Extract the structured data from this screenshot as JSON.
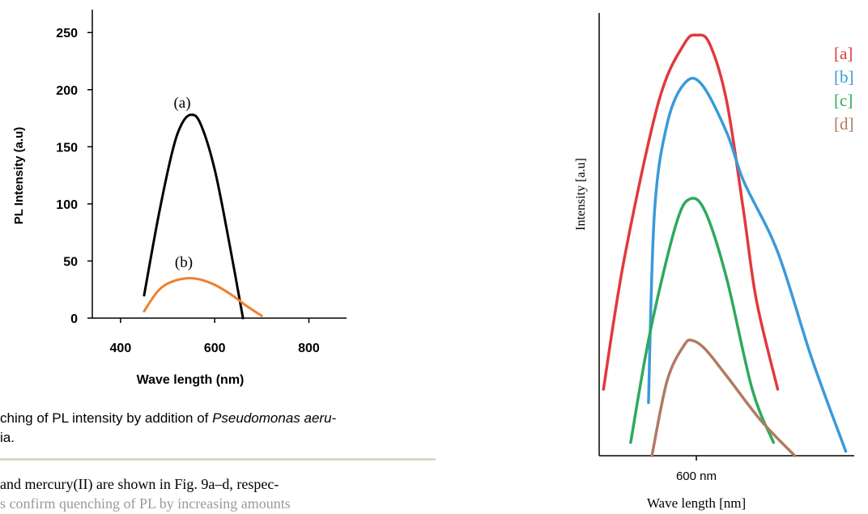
{
  "charts": {
    "left": {
      "ylabel": "PL Intensity (a.u)",
      "xlabel": "Wave length (nm)",
      "xticks": [
        "400",
        "600",
        "800"
      ],
      "yticks": [
        "0",
        "50",
        "100",
        "150",
        "200",
        "250"
      ],
      "curve_labels": [
        "(a)",
        "(b)"
      ]
    },
    "right": {
      "ylabel": "Intensity [a.u]",
      "xlabel": "Wave length [nm]",
      "xtick": "600 nm",
      "legend": [
        "[a]",
        "[b]",
        "[c]",
        "[d]"
      ]
    }
  },
  "chart_data": [
    {
      "type": "line",
      "xlabel": "Wave length (nm)",
      "ylabel": "PL Intensity (a.u)",
      "xlim": [
        340,
        880
      ],
      "ylim": [
        0,
        270
      ],
      "grid": false,
      "series": [
        {
          "name": "(a)",
          "color": "#000000",
          "x": [
            450,
            480,
            510,
            530,
            550,
            570,
            600,
            630,
            660
          ],
          "y": [
            20,
            88,
            146,
            170,
            178,
            170,
            130,
            68,
            0
          ]
        },
        {
          "name": "(b)",
          "color": "#f07f2e",
          "x": [
            450,
            480,
            510,
            550,
            590,
            630,
            670,
            700
          ],
          "y": [
            6,
            24,
            32,
            35,
            31,
            22,
            10,
            2
          ]
        }
      ]
    },
    {
      "type": "line",
      "xlabel": "Wave length [nm]",
      "ylabel": "Intensity [a.u]",
      "x_tick": 600,
      "xlim": [
        450,
        750
      ],
      "ylim": [
        0,
        100
      ],
      "legend_position": "top-right",
      "grid": false,
      "series": [
        {
          "name": "[a]",
          "color": "#e03a3e",
          "x": [
            455,
            480,
            520,
            550,
            565,
            580,
            600,
            620,
            635,
            660
          ],
          "y": [
            15,
            45,
            80,
            93,
            95,
            93,
            80,
            55,
            35,
            15
          ]
        },
        {
          "name": "[b]",
          "color": "#3a9ad9",
          "x": [
            508,
            515,
            530,
            550,
            570,
            600,
            620,
            660,
            700,
            740
          ],
          "y": [
            12,
            55,
            75,
            84,
            84,
            73,
            62,
            46,
            22,
            1
          ]
        },
        {
          "name": "[c]",
          "color": "#2eaa5c",
          "x": [
            487,
            510,
            540,
            557,
            575,
            600,
            630,
            655
          ],
          "y": [
            3,
            28,
            52,
            58,
            55,
            40,
            15,
            3
          ]
        },
        {
          "name": "[d]",
          "color": "#b07b62",
          "x": [
            512,
            530,
            550,
            560,
            575,
            600,
            640,
            680
          ],
          "y": [
            0,
            17,
            25,
            26,
            24,
            18,
            8,
            0
          ]
        }
      ]
    }
  ],
  "caption": {
    "line1_prefix": "ching of PL intensity by addition of ",
    "line1_italic": "Pseudomonas aeru-",
    "line2": "ia."
  },
  "body_text": {
    "line1": "and mercury(II) are shown in Fig. 9a–d, respec-",
    "line2": "s confirm quenching of PL by increasing amounts"
  }
}
